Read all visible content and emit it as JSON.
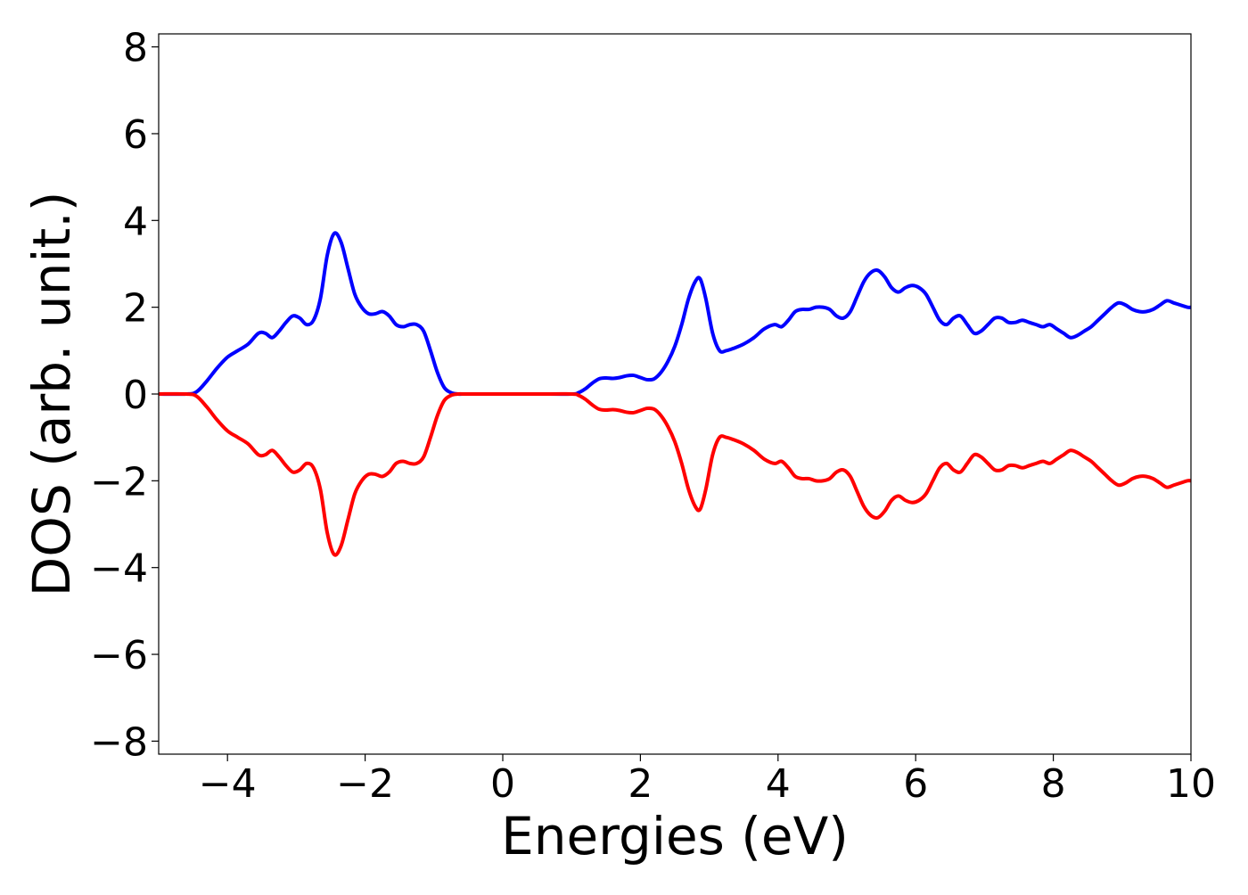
{
  "chart_data": {
    "type": "line",
    "title": "",
    "xlabel": "Energies (eV)",
    "ylabel": "DOS (arb. unit.)",
    "xlim": [
      -5,
      10
    ],
    "ylim": [
      -8.3,
      8.3
    ],
    "x_ticks": [
      -4,
      -2,
      0,
      2,
      4,
      6,
      8,
      10
    ],
    "x_tick_labels": [
      "−4",
      "−2",
      "0",
      "2",
      "4",
      "6",
      "8",
      "10"
    ],
    "y_ticks": [
      -8,
      -6,
      -4,
      -2,
      0,
      2,
      4,
      6,
      8
    ],
    "y_tick_labels": [
      "−8",
      "−6",
      "−4",
      "−2",
      "0",
      "2",
      "4",
      "6",
      "8"
    ],
    "grid": false,
    "legend": null,
    "series": [
      {
        "color": "#0000ff",
        "x": [
          -5.0,
          -4.6,
          -4.45,
          -4.3,
          -4.15,
          -4.0,
          -3.85,
          -3.7,
          -3.55,
          -3.45,
          -3.35,
          -3.25,
          -3.15,
          -3.05,
          -2.95,
          -2.85,
          -2.75,
          -2.65,
          -2.55,
          -2.45,
          -2.35,
          -2.25,
          -2.15,
          -2.05,
          -1.95,
          -1.85,
          -1.75,
          -1.65,
          -1.55,
          -1.45,
          -1.35,
          -1.25,
          -1.15,
          -1.05,
          -0.95,
          -0.85,
          -0.75,
          -0.65,
          -0.55,
          -0.4,
          0.0,
          0.5,
          1.0,
          1.1,
          1.2,
          1.3,
          1.4,
          1.5,
          1.6,
          1.7,
          1.8,
          1.9,
          2.0,
          2.1,
          2.2,
          2.3,
          2.4,
          2.5,
          2.6,
          2.7,
          2.8,
          2.87,
          2.95,
          3.05,
          3.15,
          3.25,
          3.35,
          3.5,
          3.65,
          3.8,
          3.95,
          4.05,
          4.15,
          4.25,
          4.35,
          4.45,
          4.55,
          4.65,
          4.75,
          4.85,
          4.95,
          5.05,
          5.15,
          5.25,
          5.35,
          5.45,
          5.55,
          5.65,
          5.75,
          5.85,
          5.95,
          6.05,
          6.15,
          6.25,
          6.35,
          6.45,
          6.55,
          6.65,
          6.75,
          6.85,
          6.95,
          7.05,
          7.15,
          7.25,
          7.35,
          7.45,
          7.55,
          7.65,
          7.75,
          7.85,
          7.95,
          8.05,
          8.15,
          8.25,
          8.35,
          8.45,
          8.55,
          8.65,
          8.75,
          8.85,
          8.95,
          9.05,
          9.15,
          9.25,
          9.35,
          9.45,
          9.55,
          9.65,
          9.75,
          9.85,
          9.95,
          10.0
        ],
        "y": [
          0.0,
          0.0,
          0.05,
          0.3,
          0.6,
          0.85,
          1.0,
          1.15,
          1.4,
          1.4,
          1.3,
          1.45,
          1.65,
          1.8,
          1.75,
          1.6,
          1.7,
          2.2,
          3.2,
          3.7,
          3.5,
          2.9,
          2.3,
          2.0,
          1.85,
          1.85,
          1.9,
          1.8,
          1.6,
          1.55,
          1.6,
          1.6,
          1.45,
          1.0,
          0.5,
          0.15,
          0.03,
          0.0,
          0.0,
          0.0,
          0.0,
          0.0,
          0.0,
          0.03,
          0.12,
          0.25,
          0.35,
          0.37,
          0.36,
          0.38,
          0.42,
          0.43,
          0.38,
          0.33,
          0.35,
          0.5,
          0.75,
          1.1,
          1.6,
          2.2,
          2.6,
          2.65,
          2.2,
          1.4,
          1.0,
          1.0,
          1.05,
          1.15,
          1.3,
          1.5,
          1.6,
          1.55,
          1.7,
          1.9,
          1.95,
          1.95,
          2.0,
          2.0,
          1.95,
          1.8,
          1.75,
          1.9,
          2.25,
          2.6,
          2.8,
          2.85,
          2.7,
          2.45,
          2.35,
          2.45,
          2.5,
          2.45,
          2.3,
          2.0,
          1.7,
          1.6,
          1.75,
          1.8,
          1.6,
          1.4,
          1.45,
          1.6,
          1.75,
          1.75,
          1.65,
          1.65,
          1.7,
          1.65,
          1.6,
          1.55,
          1.6,
          1.5,
          1.4,
          1.3,
          1.35,
          1.45,
          1.55,
          1.7,
          1.85,
          2.0,
          2.1,
          2.05,
          1.95,
          1.9,
          1.9,
          1.95,
          2.05,
          2.15,
          2.1,
          2.05,
          2.0,
          2.0
        ]
      },
      {
        "color": "#ff0000",
        "x": [
          -5.0,
          -4.6,
          -4.45,
          -4.3,
          -4.15,
          -4.0,
          -3.85,
          -3.7,
          -3.55,
          -3.45,
          -3.35,
          -3.25,
          -3.15,
          -3.05,
          -2.95,
          -2.85,
          -2.75,
          -2.65,
          -2.55,
          -2.45,
          -2.35,
          -2.25,
          -2.15,
          -2.05,
          -1.95,
          -1.85,
          -1.75,
          -1.65,
          -1.55,
          -1.45,
          -1.35,
          -1.25,
          -1.15,
          -1.05,
          -0.95,
          -0.85,
          -0.75,
          -0.65,
          -0.55,
          -0.4,
          0.0,
          0.5,
          1.0,
          1.1,
          1.2,
          1.3,
          1.4,
          1.5,
          1.6,
          1.7,
          1.8,
          1.9,
          2.0,
          2.1,
          2.2,
          2.3,
          2.4,
          2.5,
          2.6,
          2.7,
          2.8,
          2.87,
          2.95,
          3.05,
          3.15,
          3.25,
          3.35,
          3.5,
          3.65,
          3.8,
          3.95,
          4.05,
          4.15,
          4.25,
          4.35,
          4.45,
          4.55,
          4.65,
          4.75,
          4.85,
          4.95,
          5.05,
          5.15,
          5.25,
          5.35,
          5.45,
          5.55,
          5.65,
          5.75,
          5.85,
          5.95,
          6.05,
          6.15,
          6.25,
          6.35,
          6.45,
          6.55,
          6.65,
          6.75,
          6.85,
          6.95,
          7.05,
          7.15,
          7.25,
          7.35,
          7.45,
          7.55,
          7.65,
          7.75,
          7.85,
          7.95,
          8.05,
          8.15,
          8.25,
          8.35,
          8.45,
          8.55,
          8.65,
          8.75,
          8.85,
          8.95,
          9.05,
          9.15,
          9.25,
          9.35,
          9.45,
          9.55,
          9.65,
          9.75,
          9.85,
          9.95,
          10.0
        ],
        "y": [
          0.0,
          0.0,
          -0.05,
          -0.3,
          -0.6,
          -0.85,
          -1.0,
          -1.15,
          -1.4,
          -1.4,
          -1.3,
          -1.45,
          -1.65,
          -1.8,
          -1.75,
          -1.6,
          -1.7,
          -2.2,
          -3.2,
          -3.7,
          -3.5,
          -2.9,
          -2.3,
          -2.0,
          -1.85,
          -1.85,
          -1.9,
          -1.8,
          -1.6,
          -1.55,
          -1.6,
          -1.6,
          -1.45,
          -1.0,
          -0.5,
          -0.15,
          -0.03,
          0.0,
          0.0,
          0.0,
          0.0,
          0.0,
          0.0,
          -0.03,
          -0.12,
          -0.25,
          -0.35,
          -0.37,
          -0.36,
          -0.38,
          -0.42,
          -0.43,
          -0.38,
          -0.33,
          -0.35,
          -0.5,
          -0.75,
          -1.1,
          -1.6,
          -2.2,
          -2.6,
          -2.65,
          -2.2,
          -1.4,
          -1.0,
          -1.0,
          -1.05,
          -1.15,
          -1.3,
          -1.5,
          -1.6,
          -1.55,
          -1.7,
          -1.9,
          -1.95,
          -1.95,
          -2.0,
          -2.0,
          -1.95,
          -1.8,
          -1.75,
          -1.9,
          -2.25,
          -2.6,
          -2.8,
          -2.85,
          -2.7,
          -2.45,
          -2.35,
          -2.45,
          -2.5,
          -2.45,
          -2.3,
          -2.0,
          -1.7,
          -1.6,
          -1.75,
          -1.8,
          -1.6,
          -1.4,
          -1.45,
          -1.6,
          -1.75,
          -1.75,
          -1.65,
          -1.65,
          -1.7,
          -1.65,
          -1.6,
          -1.55,
          -1.6,
          -1.5,
          -1.4,
          -1.3,
          -1.35,
          -1.45,
          -1.55,
          -1.7,
          -1.85,
          -2.0,
          -2.1,
          -2.05,
          -1.95,
          -1.9,
          -1.9,
          -1.95,
          -2.05,
          -2.15,
          -2.1,
          -2.05,
          -2.0,
          -2.0
        ]
      }
    ]
  }
}
